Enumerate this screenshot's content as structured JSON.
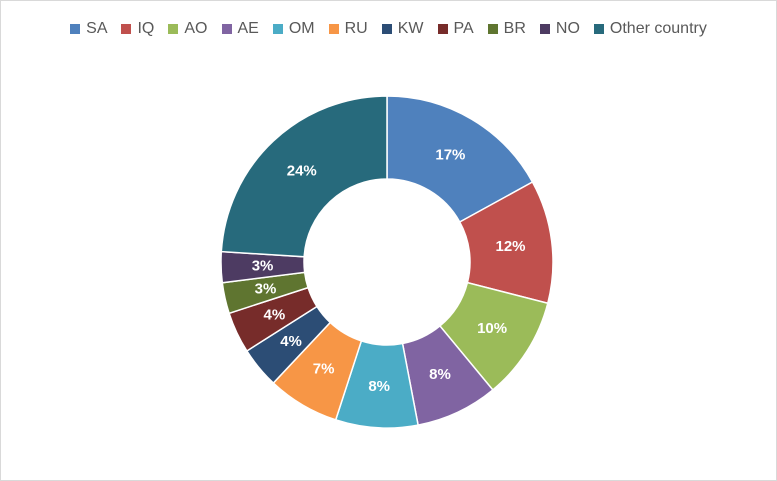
{
  "chart_data": {
    "type": "pie",
    "variant": "donut",
    "title": "",
    "legend_position": "top",
    "categories": [
      "SA",
      "IQ",
      "AO",
      "AE",
      "OM",
      "RU",
      "KW",
      "PA",
      "BR",
      "NO",
      "Other country"
    ],
    "values": [
      17,
      12,
      10,
      8,
      8,
      7,
      4,
      4,
      3,
      3,
      24
    ],
    "labels": [
      "17%",
      "12%",
      "10%",
      "8%",
      "8%",
      "7%",
      "4%",
      "4%",
      "3%",
      "3%",
      "24%"
    ],
    "colors": [
      "#4F81BD",
      "#C0504D",
      "#9BBB59",
      "#8064A2",
      "#4BACC6",
      "#F79646",
      "#2C4D75",
      "#772C2A",
      "#5F7530",
      "#4D3B62",
      "#276A7C"
    ]
  }
}
